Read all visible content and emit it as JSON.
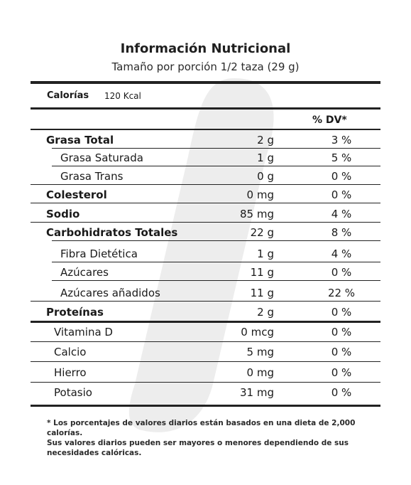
{
  "header": {
    "title": "Información Nutricional",
    "serving": "Tamaño por porción 1/2 taza (29 g)"
  },
  "calories": {
    "label": "Calorías",
    "value": "120 Kcal"
  },
  "dv_header": "% DV*",
  "nutrients": [
    {
      "name": "Grasa Total",
      "amount": "2 g",
      "dv": "3 %",
      "bold": true,
      "indent": false
    },
    {
      "name": "Grasa Saturada",
      "amount": "1 g",
      "dv": "5 %",
      "bold": false,
      "indent": true
    },
    {
      "name": "Grasa Trans",
      "amount": "0 g",
      "dv": "0 %",
      "bold": false,
      "indent": true
    },
    {
      "name": "Colesterol",
      "amount": "0 mg",
      "dv": "0 %",
      "bold": true,
      "indent": false
    },
    {
      "name": "Sodio",
      "amount": "85 mg",
      "dv": "4 %",
      "bold": true,
      "indent": false
    },
    {
      "name": "Carbohidratos Totales",
      "amount": "22 g",
      "dv": "8 %",
      "bold": true,
      "indent": false
    },
    {
      "name": "Fibra Dietética",
      "amount": "1 g",
      "dv": "4 %",
      "bold": false,
      "indent": true
    },
    {
      "name": "Azúcares",
      "amount": "11 g",
      "dv": "0 %",
      "bold": false,
      "indent": true
    },
    {
      "name": "Azúcares añadidos",
      "amount": "11 g",
      "dv": "22 %",
      "bold": false,
      "indent": true
    },
    {
      "name": "Proteínas",
      "amount": "2 g",
      "dv": "0 %",
      "bold": true,
      "indent": false
    }
  ],
  "vitamins": [
    {
      "name": "Vitamina D",
      "amount": "0 mcg",
      "dv": "0 %"
    },
    {
      "name": "Calcio",
      "amount": "5 mg",
      "dv": "0 %"
    },
    {
      "name": "Hierro",
      "amount": "0 mg",
      "dv": "0 %"
    },
    {
      "name": "Potasio",
      "amount": "31 mg",
      "dv": "0 %"
    }
  ],
  "footnote": {
    "line1": "* Los porcentajes de valores diarios están basados en una dieta de 2,000 calorías.",
    "line2": "Sus valores diarios pueden ser mayores o menores dependiendo de sus necesidades calóricas."
  }
}
